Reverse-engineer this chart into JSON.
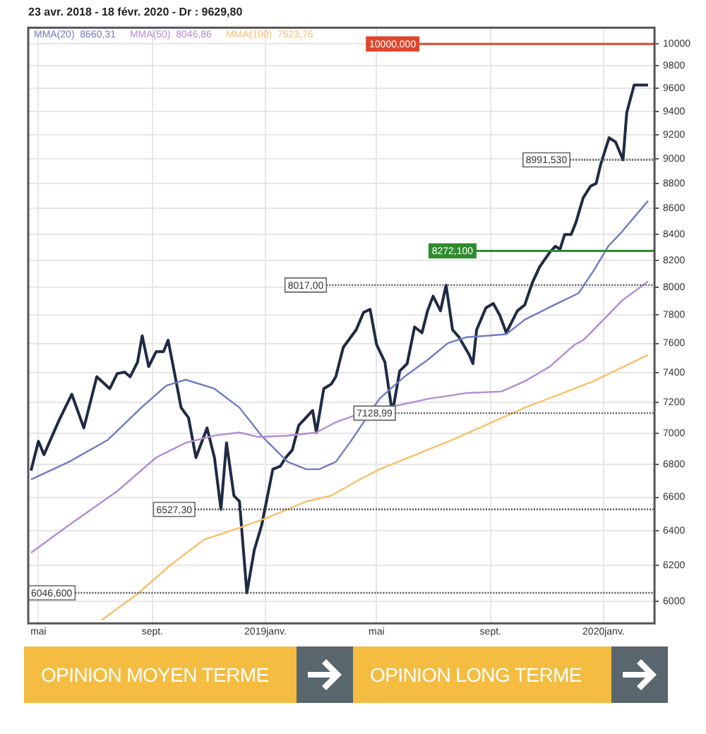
{
  "chart_data": {
    "type": "line",
    "title": "23 avr. 2018 - 18 févr. 2020 - Dr : 9629,80",
    "xlim": [
      "2018-04-20",
      "2020-02-25"
    ],
    "xticks": [
      {
        "value": "2018-05-01",
        "label": "mai"
      },
      {
        "value": "2018-09-01",
        "label": "sept."
      },
      {
        "value": "2019-01-01",
        "label": "2019janv."
      },
      {
        "value": "2019-05-01",
        "label": "mai"
      },
      {
        "value": "2019-09-01",
        "label": "sept."
      },
      {
        "value": "2020-01-01",
        "label": "2020janv."
      }
    ],
    "ylim": [
      5880,
      10150
    ],
    "log": true,
    "grid": true,
    "legend": "top left",
    "yticks": [
      6000,
      6200,
      6400,
      6600,
      6800,
      7000,
      7200,
      7400,
      7600,
      7800,
      8000,
      8200,
      8400,
      8600,
      8800,
      9000,
      9200,
      9400,
      9600,
      9800,
      10000
    ],
    "series": [
      {
        "color": "#1f2a44",
        "x": [
          "2018-04-23",
          "2018-05-01",
          "2018-05-07",
          "2018-05-23",
          "2018-06-06",
          "2018-06-19",
          "2018-07-03",
          "2018-07-17",
          "2018-07-25",
          "2018-08-02",
          "2018-08-08",
          "2018-08-16",
          "2018-08-21",
          "2018-08-28",
          "2018-09-05",
          "2018-09-13",
          "2018-09-18",
          "2018-09-26",
          "2018-10-02",
          "2018-10-10",
          "2018-10-18",
          "2018-10-30",
          "2018-11-07",
          "2018-11-14",
          "2018-11-20",
          "2018-11-28",
          "2018-12-04",
          "2018-12-12",
          "2018-12-20",
          "2018-12-28",
          "2019-01-09",
          "2019-01-17",
          "2019-01-23",
          "2019-01-30",
          "2019-02-06",
          "2019-02-21",
          "2019-02-25",
          "2019-03-05",
          "2019-03-13",
          "2019-03-18",
          "2019-03-26",
          "2019-04-09",
          "2019-04-17",
          "2019-04-24",
          "2019-05-01",
          "2019-05-10",
          "2019-05-18",
          "2019-05-26",
          "2019-06-03",
          "2019-06-11",
          "2019-06-19",
          "2019-06-25",
          "2019-07-01",
          "2019-07-09",
          "2019-07-15",
          "2019-07-22",
          "2019-07-29",
          "2019-08-09",
          "2019-08-13",
          "2019-08-17",
          "2019-08-27",
          "2019-09-04",
          "2019-09-11",
          "2019-09-18",
          "2019-09-30",
          "2019-10-08",
          "2019-10-16",
          "2019-10-24",
          "2019-11-04",
          "2019-11-10",
          "2019-11-15",
          "2019-11-20",
          "2019-11-27",
          "2019-12-02",
          "2019-12-10",
          "2019-12-18",
          "2019-12-24",
          "2019-12-29",
          "2020-01-07",
          "2020-01-14",
          "2020-01-22",
          "2020-01-26",
          "2020-02-03",
          "2020-02-18"
        ],
        "values": [
          6764,
          6948,
          6863,
          7080,
          7254,
          7033,
          7371,
          7291,
          7392,
          7402,
          7371,
          7470,
          7653,
          7440,
          7542,
          7542,
          7622,
          7360,
          7165,
          7099,
          6845,
          7033,
          6845,
          6527,
          6938,
          6610,
          6575,
          6047,
          6289,
          6434,
          6772,
          6790,
          6845,
          6892,
          7050,
          7146,
          7004,
          7291,
          7321,
          7371,
          7572,
          7695,
          7819,
          7841,
          7592,
          7470,
          7129,
          7410,
          7460,
          7715,
          7674,
          7830,
          7936,
          7830,
          8017,
          7695,
          7643,
          7521,
          7460,
          7695,
          7851,
          7883,
          7798,
          7674,
          7830,
          7873,
          8033,
          8152,
          8262,
          8307,
          8285,
          8397,
          8397,
          8487,
          8684,
          8778,
          8800,
          8957,
          9176,
          9140,
          8992,
          9388,
          9630,
          9630
        ]
      },
      {
        "name": "MMA(20)  8660,31",
        "color": "#6f7cc4",
        "x": [
          "2018-04-23",
          "2018-06-03",
          "2018-07-15",
          "2018-08-20",
          "2018-09-16",
          "2018-10-07",
          "2018-11-07",
          "2018-12-04",
          "2018-12-29",
          "2019-01-25",
          "2019-02-14",
          "2019-02-28",
          "2019-03-18",
          "2019-04-02",
          "2019-05-04",
          "2019-05-20",
          "2019-05-31",
          "2019-06-26",
          "2019-07-17",
          "2019-08-06",
          "2019-08-28",
          "2019-09-18",
          "2019-10-08",
          "2019-11-09",
          "2019-12-05",
          "2019-12-21",
          "2020-01-06",
          "2020-01-21",
          "2020-02-18"
        ],
        "values": [
          6709,
          6818,
          6957,
          7165,
          7311,
          7351,
          7291,
          7165,
          6975,
          6818,
          6772,
          6772,
          6818,
          6938,
          7223,
          7311,
          7371,
          7490,
          7602,
          7643,
          7653,
          7664,
          7767,
          7873,
          7957,
          8120,
          8307,
          8420,
          8660
        ]
      },
      {
        "name": "MMA(50)  8046,86",
        "color": "#b48cd0",
        "x": [
          "2018-04-23",
          "2018-06-03",
          "2018-07-25",
          "2018-09-05",
          "2018-10-07",
          "2018-11-07",
          "2018-12-04",
          "2018-12-24",
          "2019-01-25",
          "2019-02-25",
          "2019-03-18",
          "2019-04-13",
          "2019-05-20",
          "2019-06-26",
          "2019-08-06",
          "2019-09-13",
          "2019-10-08",
          "2019-11-04",
          "2019-12-01",
          "2019-12-10",
          "2020-01-01",
          "2020-01-21",
          "2020-02-18"
        ],
        "values": [
          6273,
          6434,
          6637,
          6845,
          6938,
          6984,
          7004,
          6975,
          6984,
          7004,
          7070,
          7127,
          7175,
          7223,
          7262,
          7272,
          7341,
          7440,
          7592,
          7622,
          7767,
          7904,
          8044
        ]
      },
      {
        "name": "MMA(100)  7523,76",
        "color": "#fbbf6a",
        "x": [
          "2018-07-08",
          "2018-08-16",
          "2018-09-21",
          "2018-10-27",
          "2018-12-04",
          "2019-01-04",
          "2019-02-14",
          "2019-03-13",
          "2019-04-13",
          "2019-05-04",
          "2019-07-22",
          "2019-10-08",
          "2019-12-21",
          "2020-02-18"
        ],
        "values": [
          5897,
          6041,
          6205,
          6349,
          6418,
          6479,
          6575,
          6610,
          6709,
          6772,
          6957,
          7165,
          7341,
          7520
        ]
      }
    ],
    "ref_lines": [
      {
        "axis": "y",
        "value": 10000,
        "label": "10000,000",
        "color": "#e0452c",
        "line_style": "solid"
      },
      {
        "axis": "y",
        "value": 8991.53,
        "label": "8991,530",
        "color": "#555555",
        "line_style": "dotted"
      },
      {
        "axis": "y",
        "value": 8272.1,
        "label": "8272,100",
        "color": "#2e8b2e",
        "line_style": "solid"
      },
      {
        "axis": "y",
        "value": 8017,
        "label": "8017,00",
        "color": "#555555",
        "line_style": "dotted"
      },
      {
        "axis": "y",
        "value": 7128.99,
        "label": "7128,99",
        "color": "#555555",
        "line_style": "dotted"
      },
      {
        "axis": "y",
        "value": 6527.3,
        "label": "6527,30",
        "color": "#555555",
        "line_style": "dotted"
      },
      {
        "axis": "y",
        "value": 6046.6,
        "label": "6046,600",
        "color": "#555555",
        "line_style": "dotted"
      }
    ],
    "annotations": [
      "OPINION MOYEN TERME",
      "OPINION LONG TERME"
    ]
  }
}
